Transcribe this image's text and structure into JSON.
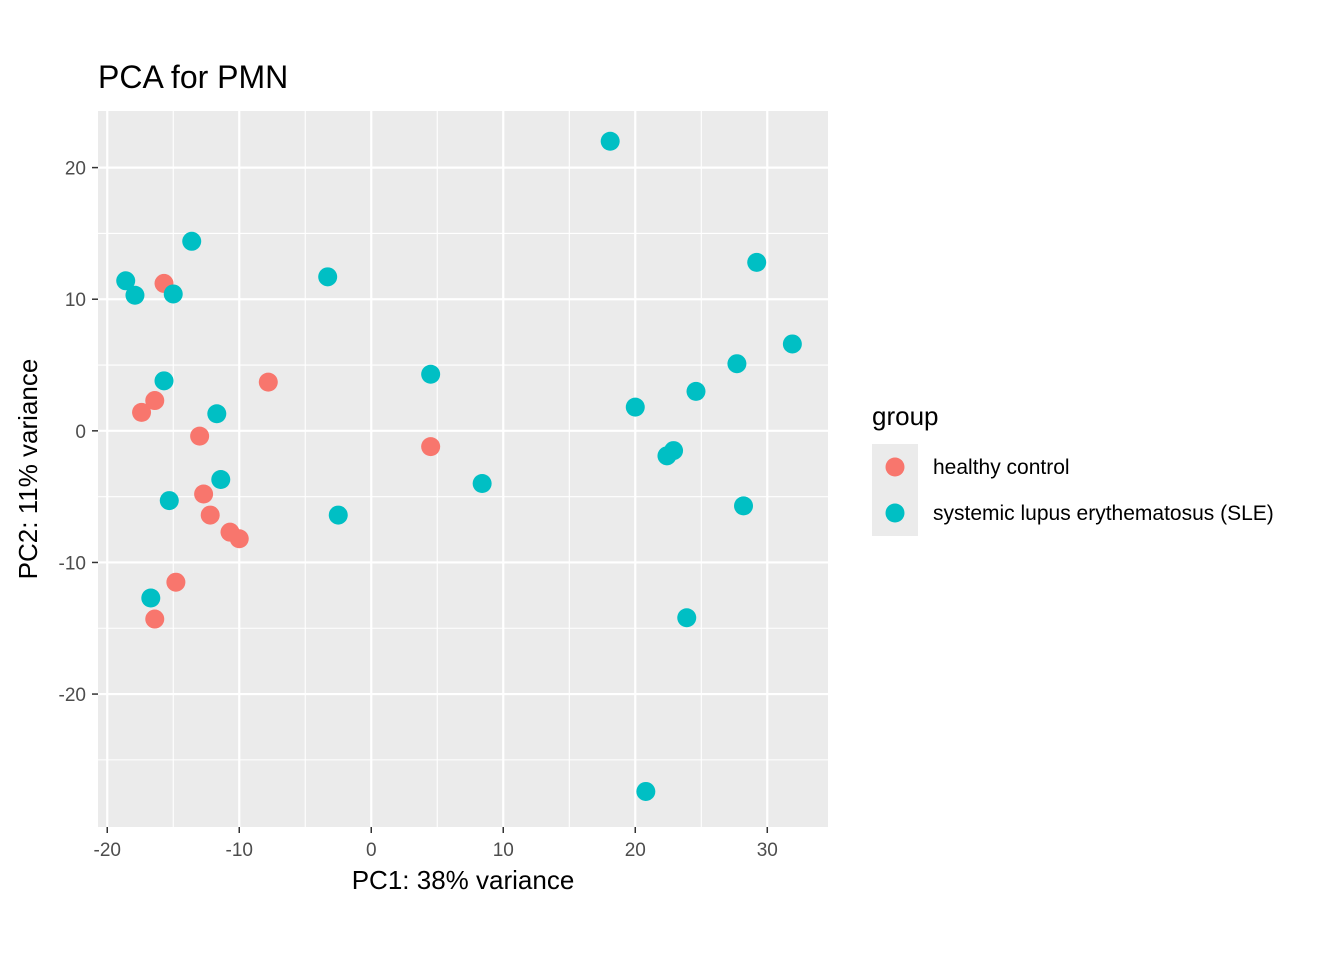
{
  "chart_data": {
    "type": "scatter",
    "title": "PCA for PMN",
    "xlabel": "PC1: 38% variance",
    "ylabel": "PC2: 11% variance",
    "xlim": [
      -20.7,
      34.6
    ],
    "ylim": [
      -30.1,
      24.3
    ],
    "x_ticks": [
      -20,
      -10,
      0,
      10,
      20,
      30
    ],
    "x_tick_labels": [
      "-20",
      "-10",
      "0",
      "10",
      "20",
      "30"
    ],
    "y_ticks": [
      -20,
      -10,
      0,
      10,
      20
    ],
    "y_tick_labels": [
      "-20",
      "-10",
      "0",
      "10",
      "20"
    ],
    "grid": true,
    "legend": {
      "title": "group",
      "placement": "right"
    },
    "series": [
      {
        "name": "healthy control",
        "color": "#F8766D",
        "points": [
          {
            "x": -15.7,
            "y": 11.2
          },
          {
            "x": -7.8,
            "y": 3.7
          },
          {
            "x": -16.4,
            "y": 2.3
          },
          {
            "x": -17.4,
            "y": 1.4
          },
          {
            "x": -13.0,
            "y": -0.4
          },
          {
            "x": 4.5,
            "y": -1.2
          },
          {
            "x": -12.7,
            "y": -4.8
          },
          {
            "x": -12.2,
            "y": -6.4
          },
          {
            "x": -10.7,
            "y": -7.7
          },
          {
            "x": -10.0,
            "y": -8.2
          },
          {
            "x": -14.8,
            "y": -11.5
          },
          {
            "x": -16.4,
            "y": -14.3
          }
        ]
      },
      {
        "name": "systemic lupus erythematosus (SLE)",
        "color": "#00BFC4",
        "points": [
          {
            "x": 18.1,
            "y": 22.0
          },
          {
            "x": -13.6,
            "y": 14.4
          },
          {
            "x": 29.2,
            "y": 12.8
          },
          {
            "x": -3.3,
            "y": 11.7
          },
          {
            "x": -18.6,
            "y": 11.4
          },
          {
            "x": -15.0,
            "y": 10.4
          },
          {
            "x": -17.9,
            "y": 10.3
          },
          {
            "x": 31.9,
            "y": 6.6
          },
          {
            "x": 27.7,
            "y": 5.1
          },
          {
            "x": 4.5,
            "y": 4.3
          },
          {
            "x": -15.7,
            "y": 3.8
          },
          {
            "x": 24.6,
            "y": 3.0
          },
          {
            "x": 20.0,
            "y": 1.8
          },
          {
            "x": -11.7,
            "y": 1.3
          },
          {
            "x": 22.9,
            "y": -1.5
          },
          {
            "x": 22.4,
            "y": -1.9
          },
          {
            "x": -11.4,
            "y": -3.7
          },
          {
            "x": 8.4,
            "y": -4.0
          },
          {
            "x": -15.3,
            "y": -5.3
          },
          {
            "x": -2.5,
            "y": -6.4
          },
          {
            "x": 28.2,
            "y": -5.7
          },
          {
            "x": -16.7,
            "y": -12.7
          },
          {
            "x": 23.9,
            "y": -14.2
          },
          {
            "x": 20.8,
            "y": -27.4
          }
        ]
      }
    ]
  }
}
